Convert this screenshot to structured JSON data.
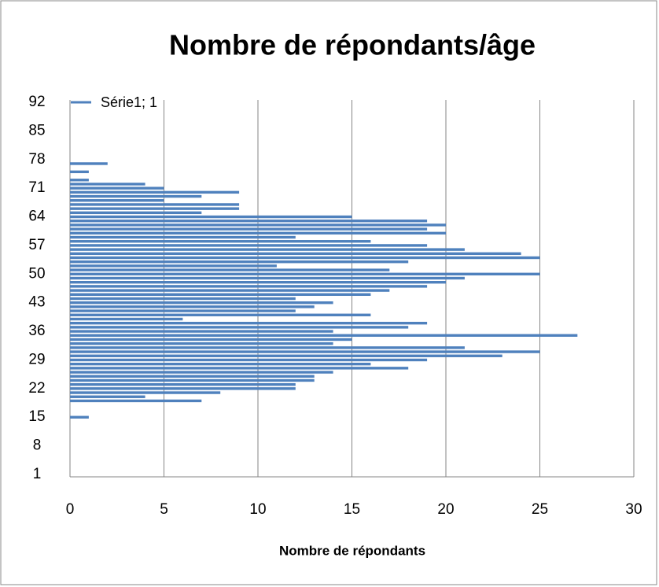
{
  "chart_data": {
    "type": "barh",
    "title": "Nombre de répondants/âge",
    "xlabel": "Nombre de  répondants",
    "categories": [
      1,
      null,
      null,
      null,
      null,
      null,
      null,
      8,
      null,
      null,
      null,
      null,
      null,
      null,
      15,
      null,
      null,
      null,
      null,
      null,
      null,
      22,
      null,
      null,
      null,
      null,
      null,
      null,
      29,
      null,
      null,
      null,
      null,
      null,
      null,
      36,
      null,
      null,
      null,
      null,
      null,
      null,
      43,
      null,
      null,
      null,
      null,
      null,
      null,
      50,
      null,
      null,
      null,
      null,
      null,
      null,
      57,
      null,
      null,
      null,
      null,
      null,
      null,
      64,
      null,
      null,
      null,
      null,
      null,
      null,
      71,
      null,
      null,
      null,
      null,
      null,
      null,
      78,
      null,
      null,
      null,
      null,
      null,
      null,
      85,
      null,
      null,
      null,
      null,
      null,
      null,
      92
    ],
    "series": [
      {
        "name": "Série1; 1",
        "color": "#4f81bd",
        "values": [
          0,
          0,
          0,
          0,
          0,
          0,
          0,
          0,
          0,
          0,
          0,
          0,
          0,
          0,
          1,
          0,
          0,
          0,
          7,
          4,
          8,
          12,
          12,
          13,
          13,
          14,
          18,
          16,
          19,
          23,
          25,
          21,
          14,
          15,
          27,
          14,
          18,
          19,
          6,
          16,
          12,
          13,
          14,
          12,
          16,
          17,
          19,
          20,
          21,
          25,
          17,
          11,
          18,
          25,
          24,
          21,
          19,
          16,
          12,
          20,
          19,
          20,
          19,
          15,
          7,
          9,
          9,
          5,
          7,
          9,
          5,
          4,
          1,
          0,
          1,
          0,
          2,
          0,
          0,
          0,
          0,
          0,
          0,
          0,
          0,
          0,
          0,
          0,
          0,
          0,
          0,
          0
        ]
      }
    ],
    "xlim": [
      0,
      30
    ],
    "xticks": [
      0,
      5,
      10,
      15,
      20,
      25,
      30
    ],
    "grid": true,
    "legend": "top-left"
  }
}
